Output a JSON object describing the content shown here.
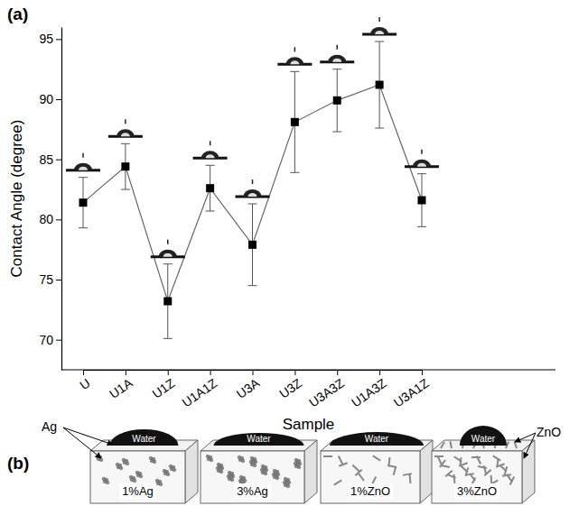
{
  "chart_data": {
    "type": "line",
    "panel_label": "(a)",
    "x_label": "Sample",
    "y_label": "Contact Angle (degree)",
    "categories": [
      "U",
      "U1A",
      "U1Z",
      "U1A1Z",
      "U3A",
      "U3Z",
      "U3A3Z",
      "U1A3Z",
      "U3A1Z"
    ],
    "values": [
      81.4,
      84.4,
      73.2,
      82.6,
      77.9,
      88.1,
      89.9,
      91.2,
      81.6
    ],
    "errors": [
      2.1,
      1.9,
      3.1,
      1.9,
      3.4,
      4.2,
      2.6,
      3.6,
      2.2
    ],
    "marker": "square",
    "color": "#000000",
    "ylim": [
      67.5,
      96
    ],
    "yticks": [
      70,
      75,
      80,
      85,
      90,
      95
    ]
  },
  "schematic": {
    "panel_label": "(b)",
    "particle_labels": [
      "Ag",
      "ZnO"
    ],
    "samples": [
      {
        "label": "1%Ag",
        "drop_label": "Water"
      },
      {
        "label": "3%Ag",
        "drop_label": "Water"
      },
      {
        "label": "1%ZnO",
        "drop_label": "Water"
      },
      {
        "label": "3%ZnO",
        "drop_label": "Water"
      }
    ]
  }
}
